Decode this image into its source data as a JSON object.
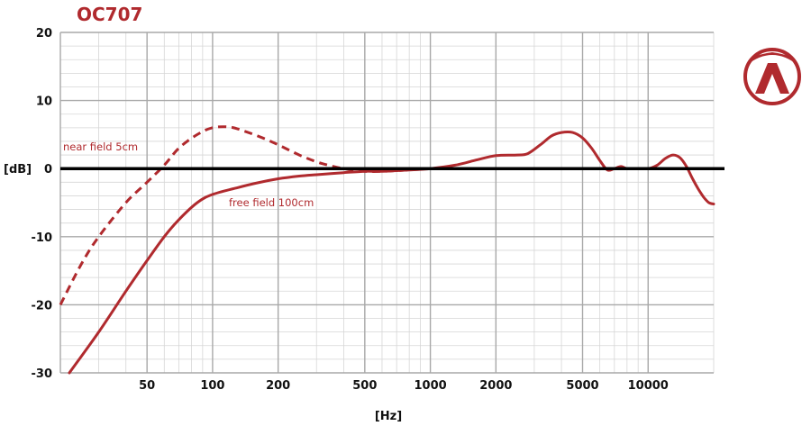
{
  "colors": {
    "accent": "#b02a2e",
    "zero_line": "#000000",
    "major_grid": "#a8a8a8",
    "minor_grid": "#d6d6d6"
  },
  "logo": {
    "icon": "lambda-logo-icon"
  },
  "chart_data": {
    "type": "line",
    "title": "OC707",
    "xlabel": "[Hz]",
    "ylabel": "[dB]",
    "x_scale": "log",
    "xlim": [
      20,
      20000
    ],
    "ylim": [
      -30,
      20
    ],
    "grid": true,
    "x_ticks": [
      50,
      100,
      200,
      500,
      1000,
      2000,
      5000,
      10000
    ],
    "x_tick_labels": [
      "50",
      "100",
      "200",
      "500",
      "1000",
      "2000",
      "5000",
      "10000"
    ],
    "y_ticks": [
      20,
      10,
      0,
      -10,
      -20,
      -30
    ],
    "y_tick_labels": [
      "20",
      "10",
      "0",
      "-10",
      "-20",
      "-30"
    ],
    "annotations": [
      {
        "text": "near field 5cm",
        "series": "near field 5cm"
      },
      {
        "text": "free field 100cm",
        "series": "free field 100cm"
      }
    ],
    "series": [
      {
        "name": "free field 100cm",
        "style": "solid",
        "x": [
          22,
          30,
          40,
          50,
          60,
          70,
          85,
          100,
          130,
          160,
          200,
          250,
          300,
          400,
          500,
          600,
          800,
          1000,
          1300,
          1600,
          2000,
          2500,
          2800,
          3200,
          3600,
          4000,
          4500,
          5000,
          5500,
          6000,
          6500,
          7000,
          7500,
          8000,
          9000,
          10000,
          11000,
          12000,
          13000,
          14000,
          15000,
          16000,
          17000,
          18000,
          19000,
          20000
        ],
        "y": [
          -30,
          -24,
          -18,
          -13.5,
          -10,
          -7.5,
          -5,
          -3.8,
          -2.8,
          -2.1,
          -1.5,
          -1.1,
          -0.9,
          -0.6,
          -0.4,
          -0.4,
          -0.2,
          0,
          0.5,
          1.2,
          1.9,
          2.0,
          2.2,
          3.5,
          4.8,
          5.3,
          5.3,
          4.5,
          3.0,
          1.2,
          -0.2,
          0,
          0.3,
          0,
          0,
          0,
          0.5,
          1.5,
          2.0,
          1.6,
          0.3,
          -1.5,
          -3.0,
          -4.2,
          -5.0,
          -5.2
        ]
      },
      {
        "name": "near field 5cm",
        "style": "dashed",
        "x": [
          20,
          25,
          30,
          40,
          50,
          60,
          70,
          85,
          100,
          120,
          140,
          170,
          200,
          250,
          300,
          350,
          400,
          500,
          600,
          800,
          1000
        ],
        "y": [
          -20,
          -14,
          -10,
          -5,
          -2,
          0.5,
          3,
          5,
          6,
          6.1,
          5.5,
          4.5,
          3.5,
          2,
          1,
          0.4,
          0,
          -0.4,
          -0.4,
          -0.2,
          0
        ]
      }
    ]
  }
}
